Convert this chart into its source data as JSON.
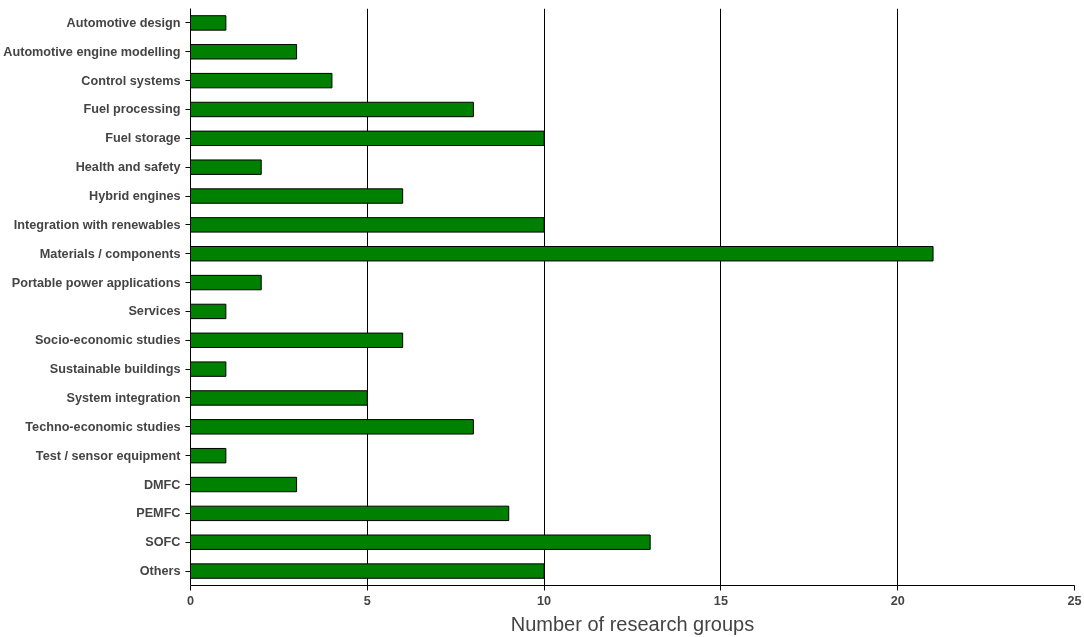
{
  "chart_data": {
    "type": "bar",
    "orientation": "horizontal",
    "xlabel": "Number of research groups",
    "categories": [
      "Automotive design",
      "Automotive engine modelling",
      "Control systems",
      "Fuel processing",
      "Fuel storage",
      "Health and safety",
      "Hybrid engines",
      "Integration with renewables",
      "Materials / components",
      "Portable power applications",
      "Services",
      "Socio-economic studies",
      "Sustainable buildings",
      "System integration",
      "Techno-economic studies",
      "Test / sensor equipment",
      "DMFC",
      "PEMFC",
      "SOFC",
      "Others"
    ],
    "values": [
      1,
      3,
      4,
      8,
      10,
      2,
      6,
      10,
      21,
      2,
      1,
      6,
      1,
      5,
      8,
      1,
      3,
      9,
      13,
      10
    ],
    "color": "#008000",
    "xlim": [
      0,
      25
    ],
    "xticks": [
      0,
      5,
      10,
      15,
      20,
      25
    ],
    "grid": "x"
  }
}
